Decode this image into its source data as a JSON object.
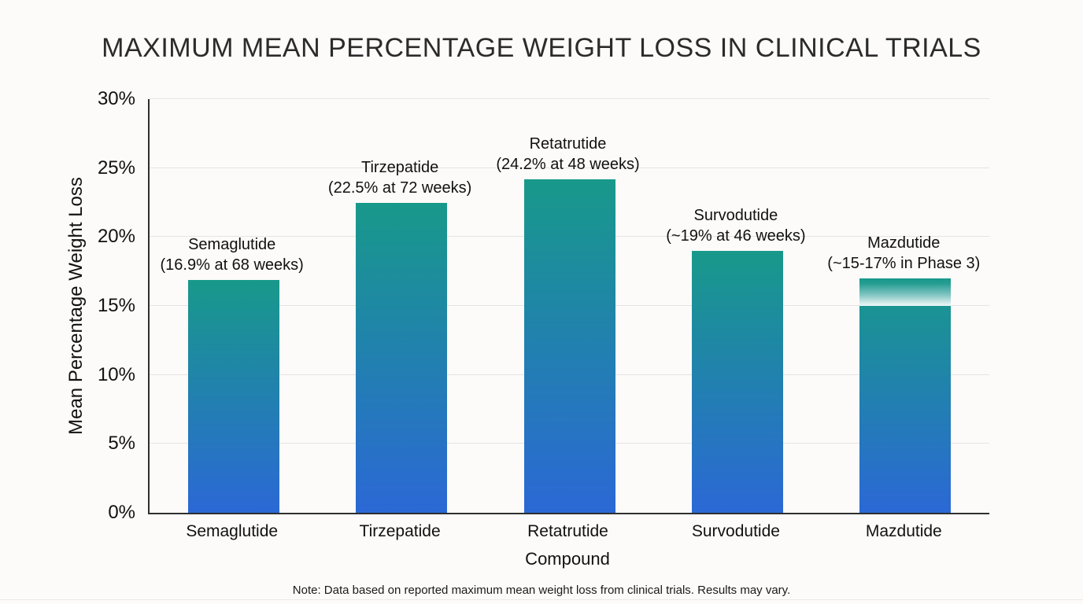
{
  "chart_data": {
    "type": "bar",
    "title": "MAXIMUM MEAN PERCENTAGE WEIGHT LOSS IN CLINICAL TRIALS",
    "xlabel": "Compound",
    "ylabel": "Mean Percentage Weight Loss",
    "note": "Note: Data based on reported maximum mean weight loss from clinical trials. Results may vary.",
    "ylim": [
      0,
      30
    ],
    "grid": true,
    "legend": "none",
    "yticks": [
      {
        "value": 0,
        "label": "0%"
      },
      {
        "value": 5,
        "label": "5%"
      },
      {
        "value": 10,
        "label": "10%"
      },
      {
        "value": 15,
        "label": "15%"
      },
      {
        "value": 20,
        "label": "20%"
      },
      {
        "value": 25,
        "label": "25%"
      },
      {
        "value": 30,
        "label": "30%"
      }
    ],
    "categories": [
      "Semaglutide",
      "Tirzepatide",
      "Retatrutide",
      "Survodutide",
      "Mazdutide"
    ],
    "values": [
      16.9,
      22.5,
      24.2,
      19,
      17
    ],
    "bars": [
      {
        "category": "Semaglutide",
        "value": 16.9,
        "label_line1": "Semaglutide",
        "label_line2": "(16.9% at 68 weeks)"
      },
      {
        "category": "Tirzepatide",
        "value": 22.5,
        "label_line1": "Tirzepatide",
        "label_line2": "(22.5% at 72 weeks)"
      },
      {
        "category": "Retatrutide",
        "value": 24.2,
        "label_line1": "Retatrutide",
        "label_line2": "(24.2% at 48 weeks)"
      },
      {
        "category": "Survodutide",
        "value": 19,
        "label_line1": "Survodutide",
        "label_line2": "(~19% at 46 weeks)"
      },
      {
        "category": "Mazdutide",
        "value": 17,
        "label_line1": "Mazdutide",
        "label_line2": "(~15-17% in Phase 3)",
        "uncertainty_band": {
          "from": 15,
          "to": 17
        }
      }
    ],
    "colors": {
      "bar_gradient_top": "#18998a",
      "bar_gradient_bottom": "#2b68d5",
      "gridline": "#e4e4e4",
      "axis": "#2f2f2f",
      "text": "#111111",
      "background": "#fcfbf9"
    }
  }
}
